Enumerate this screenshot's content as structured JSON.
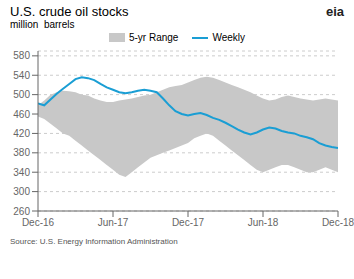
{
  "chart_data": {
    "type": "line",
    "title": "U.S. crude oil stocks",
    "subtitle": "million  barrels",
    "source": "Source: U.S. Energy Information Administration",
    "annotations": [
      "eia"
    ],
    "x": [
      0,
      0.5,
      1,
      1.5,
      2,
      2.5,
      3,
      3.5,
      4,
      4.5,
      5,
      5.5,
      6,
      6.5,
      7,
      7.5,
      8,
      8.5,
      9,
      9.5,
      10,
      10.5,
      11,
      11.5,
      12,
      12.5,
      13,
      13.5,
      14,
      14.5,
      15,
      15.5,
      16,
      16.5,
      17,
      17.5,
      18,
      18.5,
      19,
      19.5,
      20,
      20.5,
      21,
      21.5,
      22,
      22.5,
      23,
      23.5,
      24
    ],
    "xlim": [
      0,
      24
    ],
    "xticks": [
      {
        "value": 0,
        "label": "Dec-16"
      },
      {
        "value": 6,
        "label": "Jun-17"
      },
      {
        "value": 12,
        "label": "Dec-17"
      },
      {
        "value": 18,
        "label": "Jun-18"
      },
      {
        "value": 24,
        "label": "Dec-18"
      }
    ],
    "ylim": [
      260,
      590
    ],
    "yticks": [
      260,
      300,
      340,
      380,
      420,
      460,
      500,
      540,
      580
    ],
    "grid": true,
    "legend": "top",
    "series": [
      {
        "name": "5-yr Range",
        "type": "area",
        "color": "#c8c8c8",
        "low": [
          455,
          450,
          440,
          430,
          420,
          415,
          405,
          395,
          385,
          375,
          365,
          355,
          345,
          335,
          330,
          340,
          350,
          360,
          370,
          375,
          380,
          385,
          390,
          395,
          400,
          410,
          415,
          420,
          415,
          405,
          395,
          385,
          375,
          365,
          355,
          345,
          340,
          345,
          350,
          355,
          355,
          350,
          345,
          340,
          340,
          345,
          350,
          345,
          340
        ],
        "high": [
          478,
          488,
          500,
          505,
          508,
          507,
          505,
          500,
          498,
          492,
          488,
          485,
          485,
          488,
          490,
          492,
          495,
          498,
          500,
          505,
          510,
          515,
          518,
          520,
          525,
          530,
          535,
          537,
          535,
          530,
          525,
          520,
          515,
          510,
          505,
          498,
          492,
          488,
          490,
          495,
          498,
          495,
          492,
          490,
          488,
          490,
          492,
          490,
          488
        ]
      },
      {
        "name": "Weekly",
        "type": "line",
        "color": "#1a9ed4",
        "values": [
          482,
          478,
          490,
          502,
          512,
          522,
          532,
          536,
          534,
          530,
          522,
          515,
          510,
          505,
          503,
          505,
          508,
          510,
          508,
          505,
          492,
          478,
          466,
          460,
          457,
          460,
          462,
          458,
          452,
          448,
          442,
          435,
          428,
          422,
          418,
          422,
          428,
          432,
          430,
          425,
          422,
          420,
          415,
          412,
          408,
          400,
          395,
          392,
          390
        ]
      }
    ]
  }
}
